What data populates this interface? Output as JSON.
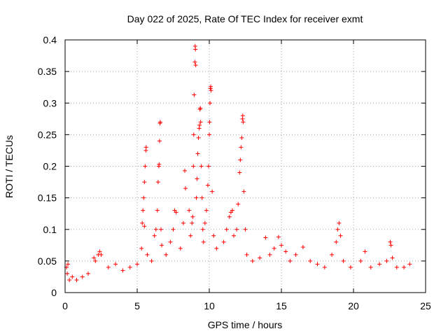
{
  "chart_data": {
    "type": "scatter",
    "title": "Day 022 of 2025, Rate Of TEC Index for receiver exmt",
    "xlabel": "GPS time / hours",
    "ylabel": "ROTI / TECUs",
    "xlim": [
      0,
      25
    ],
    "ylim": [
      0,
      0.4
    ],
    "xticks": [
      0,
      5,
      10,
      15,
      20,
      25
    ],
    "xtick_labels": [
      "0",
      "5",
      "10",
      "15",
      "20",
      "25"
    ],
    "yticks": [
      0,
      0.05,
      0.1,
      0.15,
      0.2,
      0.25,
      0.3,
      0.35,
      0.4
    ],
    "ytick_labels": [
      "0",
      "0.05",
      "0.1",
      "0.15",
      "0.2",
      "0.25",
      "0.3",
      "0.35",
      "0.4"
    ],
    "grid": true,
    "marker": "+",
    "color": "#ff0000",
    "series": [
      {
        "name": "ROTI",
        "points": [
          [
            0.1,
            0.04
          ],
          [
            0.15,
            0.03
          ],
          [
            0.2,
            0.045
          ],
          [
            0.3,
            0.02
          ],
          [
            0.5,
            0.025
          ],
          [
            0.8,
            0.02
          ],
          [
            1.2,
            0.025
          ],
          [
            1.6,
            0.03
          ],
          [
            2.0,
            0.055
          ],
          [
            2.1,
            0.05
          ],
          [
            2.3,
            0.06
          ],
          [
            2.4,
            0.065
          ],
          [
            2.5,
            0.06
          ],
          [
            3.0,
            0.04
          ],
          [
            3.5,
            0.045
          ],
          [
            4.0,
            0.035
          ],
          [
            4.5,
            0.04
          ],
          [
            5.0,
            0.045
          ],
          [
            5.3,
            0.07
          ],
          [
            5.35,
            0.11
          ],
          [
            5.4,
            0.13
          ],
          [
            5.45,
            0.15
          ],
          [
            5.5,
            0.175
          ],
          [
            5.55,
            0.2
          ],
          [
            5.6,
            0.225
          ],
          [
            5.62,
            0.23
          ],
          [
            5.5,
            0.105
          ],
          [
            5.7,
            0.06
          ],
          [
            6.0,
            0.05
          ],
          [
            6.2,
            0.09
          ],
          [
            6.3,
            0.1
          ],
          [
            6.4,
            0.13
          ],
          [
            6.45,
            0.175
          ],
          [
            6.5,
            0.2
          ],
          [
            6.52,
            0.203
          ],
          [
            6.55,
            0.24
          ],
          [
            6.58,
            0.268
          ],
          [
            6.6,
            0.27
          ],
          [
            6.65,
            0.1
          ],
          [
            6.7,
            0.075
          ],
          [
            7.0,
            0.06
          ],
          [
            7.3,
            0.08
          ],
          [
            7.5,
            0.1
          ],
          [
            7.6,
            0.13
          ],
          [
            7.7,
            0.127
          ],
          [
            8.0,
            0.07
          ],
          [
            8.2,
            0.11
          ],
          [
            8.3,
            0.193
          ],
          [
            8.35,
            0.165
          ],
          [
            8.6,
            0.13
          ],
          [
            8.7,
            0.09
          ],
          [
            8.8,
            0.11
          ],
          [
            8.85,
            0.12
          ],
          [
            8.9,
            0.2
          ],
          [
            8.92,
            0.25
          ],
          [
            8.95,
            0.313
          ],
          [
            9.0,
            0.365
          ],
          [
            9.02,
            0.39
          ],
          [
            9.04,
            0.385
          ],
          [
            9.06,
            0.36
          ],
          [
            9.1,
            0.15
          ],
          [
            9.15,
            0.18
          ],
          [
            9.2,
            0.22
          ],
          [
            9.25,
            0.245
          ],
          [
            9.3,
            0.26
          ],
          [
            9.32,
            0.265
          ],
          [
            9.35,
            0.29
          ],
          [
            9.38,
            0.292
          ],
          [
            9.4,
            0.27
          ],
          [
            9.45,
            0.2
          ],
          [
            9.5,
            0.15
          ],
          [
            9.55,
            0.1
          ],
          [
            9.6,
            0.08
          ],
          [
            9.7,
            0.11
          ],
          [
            9.8,
            0.13
          ],
          [
            9.9,
            0.17
          ],
          [
            9.95,
            0.2
          ],
          [
            10.0,
            0.25
          ],
          [
            10.02,
            0.27
          ],
          [
            10.05,
            0.3
          ],
          [
            10.08,
            0.323
          ],
          [
            10.1,
            0.326
          ],
          [
            10.12,
            0.32
          ],
          [
            10.2,
            0.16
          ],
          [
            10.3,
            0.09
          ],
          [
            10.5,
            0.07
          ],
          [
            11.0,
            0.08
          ],
          [
            11.2,
            0.1
          ],
          [
            11.4,
            0.12
          ],
          [
            11.5,
            0.127
          ],
          [
            11.6,
            0.13
          ],
          [
            11.7,
            0.09
          ],
          [
            11.9,
            0.1
          ],
          [
            12.0,
            0.14
          ],
          [
            12.1,
            0.19
          ],
          [
            12.15,
            0.21
          ],
          [
            12.2,
            0.23
          ],
          [
            12.25,
            0.245
          ],
          [
            12.3,
            0.275
          ],
          [
            12.32,
            0.28
          ],
          [
            12.35,
            0.27
          ],
          [
            12.4,
            0.16
          ],
          [
            12.5,
            0.1
          ],
          [
            12.6,
            0.06
          ],
          [
            13.0,
            0.05
          ],
          [
            13.5,
            0.055
          ],
          [
            13.9,
            0.087
          ],
          [
            14.2,
            0.06
          ],
          [
            14.5,
            0.07
          ],
          [
            14.8,
            0.088
          ],
          [
            15.0,
            0.075
          ],
          [
            15.3,
            0.065
          ],
          [
            15.6,
            0.05
          ],
          [
            16.0,
            0.06
          ],
          [
            16.5,
            0.072
          ],
          [
            17.0,
            0.05
          ],
          [
            17.5,
            0.045
          ],
          [
            18.0,
            0.04
          ],
          [
            18.5,
            0.06
          ],
          [
            18.8,
            0.08
          ],
          [
            18.9,
            0.1
          ],
          [
            19.0,
            0.11
          ],
          [
            19.1,
            0.09
          ],
          [
            19.3,
            0.05
          ],
          [
            19.8,
            0.04
          ],
          [
            20.5,
            0.05
          ],
          [
            20.8,
            0.065
          ],
          [
            21.2,
            0.04
          ],
          [
            21.8,
            0.045
          ],
          [
            22.3,
            0.05
          ],
          [
            22.55,
            0.08
          ],
          [
            22.6,
            0.075
          ],
          [
            22.7,
            0.055
          ],
          [
            23.0,
            0.04
          ],
          [
            23.5,
            0.04
          ],
          [
            23.9,
            0.045
          ]
        ]
      }
    ]
  }
}
